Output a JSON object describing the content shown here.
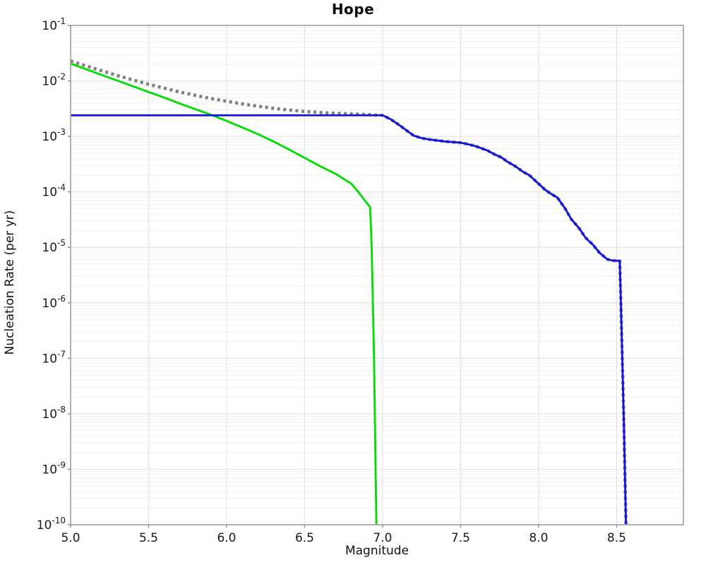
{
  "page": {
    "background": "#ffffff"
  },
  "chart_data": {
    "type": "line",
    "title": "Hope",
    "xlabel": "Magnitude",
    "ylabel": "Nucleation Rate (per yr)",
    "xlim": [
      5.0,
      8.928
    ],
    "ylim": [
      1e-10,
      0.1
    ],
    "x_ticks": [
      {
        "value": 5.0,
        "label": "5.0"
      },
      {
        "value": 5.5,
        "label": "5.5"
      },
      {
        "value": 6.0,
        "label": "6.0"
      },
      {
        "value": 6.5,
        "label": "6.5"
      },
      {
        "value": 7.0,
        "label": "7.0"
      },
      {
        "value": 7.5,
        "label": "7.5"
      },
      {
        "value": 8.0,
        "label": "8.0"
      },
      {
        "value": 8.5,
        "label": "8.5"
      }
    ],
    "y_tick_exponents": [
      -1,
      -2,
      -3,
      -4,
      -5,
      -6,
      -7,
      -8,
      -9,
      -10
    ],
    "y_tick_base": "10",
    "grid": {
      "major_color": "#e3e3e3",
      "minor_color": "#f0f0f0",
      "show_vertical": true,
      "show_minor_log": true
    },
    "frame_color": "#a9a9a9",
    "tick_color": "#8a8a8a",
    "text_color": "#1a1a1a",
    "legend": null,
    "series": [
      {
        "name": "total-rate-dotted",
        "color": "#7f7f7f",
        "style": "dotted",
        "width": 4.6,
        "points": [
          [
            5.0,
            0.0229
          ],
          [
            5.1,
            0.0186
          ],
          [
            5.2,
            0.0152
          ],
          [
            5.3,
            0.0125
          ],
          [
            5.4,
            0.0104
          ],
          [
            5.5,
            0.0087
          ],
          [
            5.6,
            0.0074
          ],
          [
            5.7,
            0.0063
          ],
          [
            5.8,
            0.0055
          ],
          [
            5.9,
            0.0048
          ],
          [
            6.0,
            0.0043
          ],
          [
            6.1,
            0.00385
          ],
          [
            6.2,
            0.0035
          ],
          [
            6.3,
            0.00321
          ],
          [
            6.4,
            0.00299
          ],
          [
            6.5,
            0.00281
          ],
          [
            6.6,
            0.00269
          ],
          [
            6.7,
            0.00261
          ],
          [
            6.8,
            0.00254
          ],
          [
            6.9,
            0.00248
          ],
          [
            6.95,
            0.00243
          ],
          [
            7.0,
            0.0024
          ],
          [
            7.05,
            0.00205
          ],
          [
            7.1,
            0.00165
          ],
          [
            7.15,
            0.0013
          ],
          [
            7.2,
            0.00103
          ],
          [
            7.25,
            0.00093
          ],
          [
            7.3,
            0.00088
          ],
          [
            7.4,
            0.00081
          ],
          [
            7.5,
            0.00077
          ],
          [
            7.55,
            0.00072
          ],
          [
            7.6,
            0.00066
          ],
          [
            7.67,
            0.00056
          ],
          [
            7.72,
            0.00047
          ],
          [
            7.76,
            0.00042
          ],
          [
            7.8,
            0.00035
          ],
          [
            7.85,
            0.00029
          ],
          [
            7.9,
            0.00023
          ],
          [
            7.94,
            0.0002
          ],
          [
            8.0,
            0.00014
          ],
          [
            8.04,
            0.00011
          ],
          [
            8.08,
            9.2e-05
          ],
          [
            8.12,
            7.9e-05
          ],
          [
            8.17,
            5e-05
          ],
          [
            8.21,
            3.2e-05
          ],
          [
            8.26,
            2.2e-05
          ],
          [
            8.3,
            1.5e-05
          ],
          [
            8.35,
            1.1e-05
          ],
          [
            8.39,
            8e-06
          ],
          [
            8.44,
            6.1e-06
          ],
          [
            8.47,
            5.8e-06
          ],
          [
            8.52,
            5.7e-06
          ],
          [
            8.53,
            5e-07
          ],
          [
            8.545,
            1e-08
          ],
          [
            8.56,
            1e-10
          ]
        ]
      },
      {
        "name": "fault-rate-green",
        "color": "#00dc00",
        "style": "solid",
        "width": 2.8,
        "points": [
          [
            5.0,
            0.0205
          ],
          [
            5.1,
            0.0162
          ],
          [
            5.2,
            0.0128
          ],
          [
            5.3,
            0.0101
          ],
          [
            5.4,
            0.008
          ],
          [
            5.5,
            0.0063
          ],
          [
            5.6,
            0.005
          ],
          [
            5.7,
            0.0039
          ],
          [
            5.8,
            0.0031
          ],
          [
            5.9,
            0.00245
          ],
          [
            6.0,
            0.0019
          ],
          [
            6.1,
            0.00145
          ],
          [
            6.2,
            0.0011
          ],
          [
            6.3,
            0.00081
          ],
          [
            6.4,
            0.00058
          ],
          [
            6.5,
            0.00041
          ],
          [
            6.6,
            0.00029
          ],
          [
            6.7,
            0.00021
          ],
          [
            6.8,
            0.00014
          ],
          [
            6.85,
            9.5e-05
          ],
          [
            6.9,
            6.2e-05
          ],
          [
            6.92,
            5.3e-05
          ],
          [
            6.93,
            1e-05
          ],
          [
            6.945,
            1e-07
          ],
          [
            6.96,
            1e-10
          ]
        ]
      },
      {
        "name": "background-rate-blue",
        "color": "#1212e0",
        "style": "solid",
        "width": 2.8,
        "points": [
          [
            5.0,
            0.0024
          ],
          [
            7.0,
            0.0024
          ],
          [
            7.05,
            0.00205
          ],
          [
            7.1,
            0.00165
          ],
          [
            7.15,
            0.0013
          ],
          [
            7.2,
            0.00103
          ],
          [
            7.25,
            0.00093
          ],
          [
            7.3,
            0.00088
          ],
          [
            7.4,
            0.00081
          ],
          [
            7.5,
            0.00077
          ],
          [
            7.55,
            0.00072
          ],
          [
            7.6,
            0.00066
          ],
          [
            7.67,
            0.00056
          ],
          [
            7.72,
            0.00047
          ],
          [
            7.76,
            0.00042
          ],
          [
            7.8,
            0.00035
          ],
          [
            7.85,
            0.00029
          ],
          [
            7.9,
            0.00023
          ],
          [
            7.94,
            0.0002
          ],
          [
            8.0,
            0.00014
          ],
          [
            8.04,
            0.00011
          ],
          [
            8.08,
            9.2e-05
          ],
          [
            8.12,
            7.9e-05
          ],
          [
            8.17,
            5e-05
          ],
          [
            8.21,
            3.2e-05
          ],
          [
            8.26,
            2.2e-05
          ],
          [
            8.3,
            1.5e-05
          ],
          [
            8.35,
            1.1e-05
          ],
          [
            8.39,
            8e-06
          ],
          [
            8.44,
            6.1e-06
          ],
          [
            8.47,
            5.8e-06
          ],
          [
            8.52,
            5.7e-06
          ],
          [
            8.53,
            5e-07
          ],
          [
            8.545,
            1e-08
          ],
          [
            8.56,
            1e-10
          ]
        ]
      }
    ]
  }
}
